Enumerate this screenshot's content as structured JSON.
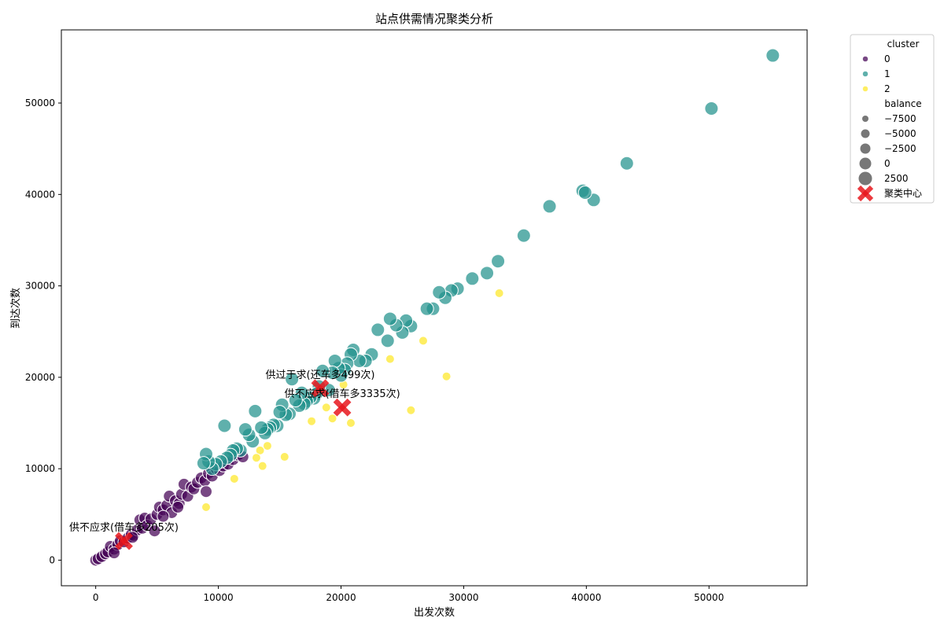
{
  "colors": {
    "c0": "#440154",
    "c1": "#21918c",
    "c2": "#fde725",
    "center": "#e8161c"
  },
  "chart_data": {
    "type": "scatter",
    "title": "站点供需情况聚类分析",
    "xlabel": "出发次数",
    "ylabel": "到达次数",
    "xlim": [
      -2800,
      58000
    ],
    "ylim": [
      -2800,
      58000
    ],
    "xticks": [
      0,
      10000,
      20000,
      30000,
      40000,
      50000
    ],
    "yticks": [
      0,
      10000,
      20000,
      30000,
      40000,
      50000
    ],
    "xtick_labels": [
      "0",
      "10000",
      "20000",
      "30000",
      "40000",
      "50000"
    ],
    "ytick_labels": [
      "0",
      "10000",
      "20000",
      "30000",
      "40000",
      "50000"
    ],
    "grid": false,
    "legend": {
      "placement": "outside-top-right",
      "hue_title": "cluster",
      "hue_items": [
        {
          "label": "0",
          "color": "#440154"
        },
        {
          "label": "1",
          "color": "#21918c"
        },
        {
          "label": "2",
          "color": "#fde725"
        }
      ],
      "size_title": "balance",
      "size_items": [
        {
          "label": "−7500",
          "value": -7500
        },
        {
          "label": "−5000",
          "value": -5000
        },
        {
          "label": "−2500",
          "value": -2500
        },
        {
          "label": "0",
          "value": 0
        },
        {
          "label": "2500",
          "value": 2500
        }
      ],
      "center_label": "聚类中心"
    },
    "clusters": [
      {
        "cluster": 0,
        "points": [
          [
            0,
            0
          ],
          [
            200,
            150
          ],
          [
            500,
            400
          ],
          [
            800,
            700
          ],
          [
            1000,
            900
          ],
          [
            1200,
            1500
          ],
          [
            1500,
            1200
          ],
          [
            1800,
            1700
          ],
          [
            2000,
            2100
          ],
          [
            2300,
            2000
          ],
          [
            2600,
            2400
          ],
          [
            2900,
            2800
          ],
          [
            3100,
            2700
          ],
          [
            3400,
            3300
          ],
          [
            3600,
            4400
          ],
          [
            3800,
            3500
          ],
          [
            4000,
            4600
          ],
          [
            4200,
            3800
          ],
          [
            4500,
            4500
          ],
          [
            4800,
            3200
          ],
          [
            5000,
            5000
          ],
          [
            5200,
            5800
          ],
          [
            5500,
            5500
          ],
          [
            5800,
            6000
          ],
          [
            6000,
            7000
          ],
          [
            6200,
            5200
          ],
          [
            6500,
            6500
          ],
          [
            6800,
            6200
          ],
          [
            7000,
            7200
          ],
          [
            7200,
            8300
          ],
          [
            7500,
            7000
          ],
          [
            7800,
            8000
          ],
          [
            8000,
            7800
          ],
          [
            8300,
            8500
          ],
          [
            8600,
            9000
          ],
          [
            8900,
            8700
          ],
          [
            9200,
            9500
          ],
          [
            9500,
            9200
          ],
          [
            9800,
            10000
          ],
          [
            10100,
            9800
          ],
          [
            10400,
            10300
          ],
          [
            10800,
            10500
          ],
          [
            11200,
            11000
          ],
          [
            11600,
            11500
          ],
          [
            12000,
            11300
          ],
          [
            1500,
            800
          ],
          [
            3000,
            2500
          ],
          [
            5500,
            4800
          ],
          [
            6700,
            5800
          ],
          [
            9000,
            7500
          ]
        ]
      },
      {
        "cluster": 1,
        "points": [
          [
            55200,
            55200
          ],
          [
            50200,
            49400
          ],
          [
            43300,
            43400
          ],
          [
            40600,
            39400
          ],
          [
            39700,
            40400
          ],
          [
            39900,
            40200
          ],
          [
            37000,
            38700
          ],
          [
            34900,
            35500
          ],
          [
            32800,
            32700
          ],
          [
            31900,
            31400
          ],
          [
            30700,
            30800
          ],
          [
            29500,
            29700
          ],
          [
            29000,
            29500
          ],
          [
            28500,
            28700
          ],
          [
            28000,
            29300
          ],
          [
            27500,
            27500
          ],
          [
            27000,
            27500
          ],
          [
            25700,
            25600
          ],
          [
            25300,
            26200
          ],
          [
            25000,
            24900
          ],
          [
            24500,
            25700
          ],
          [
            24000,
            26400
          ],
          [
            23800,
            24000
          ],
          [
            23000,
            25200
          ],
          [
            22500,
            22500
          ],
          [
            22000,
            21800
          ],
          [
            21500,
            21800
          ],
          [
            21000,
            23000
          ],
          [
            20800,
            22500
          ],
          [
            20500,
            21500
          ],
          [
            20300,
            20800
          ],
          [
            20000,
            20200
          ],
          [
            19800,
            21000
          ],
          [
            19500,
            21800
          ],
          [
            19300,
            20500
          ],
          [
            19000,
            18600
          ],
          [
            18500,
            20700
          ],
          [
            18200,
            19000
          ],
          [
            18000,
            18200
          ],
          [
            17800,
            17700
          ],
          [
            17500,
            17800
          ],
          [
            17200,
            17400
          ],
          [
            17000,
            17100
          ],
          [
            16800,
            18300
          ],
          [
            16600,
            16900
          ],
          [
            16300,
            17500
          ],
          [
            16000,
            19800
          ],
          [
            15800,
            16000
          ],
          [
            15500,
            15900
          ],
          [
            15200,
            17000
          ],
          [
            15000,
            16200
          ],
          [
            14800,
            14700
          ],
          [
            14500,
            14800
          ],
          [
            14200,
            14500
          ],
          [
            14000,
            14300
          ],
          [
            13800,
            13900
          ],
          [
            13500,
            14500
          ],
          [
            13000,
            16300
          ],
          [
            12800,
            13000
          ],
          [
            12500,
            13700
          ],
          [
            12200,
            14300
          ],
          [
            11800,
            12000
          ],
          [
            11500,
            12200
          ],
          [
            11200,
            12000
          ],
          [
            11000,
            11500
          ],
          [
            10700,
            11200
          ],
          [
            10500,
            14700
          ],
          [
            10200,
            10800
          ],
          [
            9800,
            10500
          ],
          [
            9500,
            10000
          ],
          [
            9200,
            10800
          ],
          [
            9000,
            11600
          ],
          [
            8800,
            10600
          ]
        ]
      },
      {
        "cluster": 2,
        "points": [
          [
            32900,
            29200
          ],
          [
            28600,
            20100
          ],
          [
            26700,
            24000
          ],
          [
            25700,
            16400
          ],
          [
            24000,
            22000
          ],
          [
            20800,
            15000
          ],
          [
            20200,
            19200
          ],
          [
            19300,
            15500
          ],
          [
            18800,
            16700
          ],
          [
            17600,
            15200
          ],
          [
            15400,
            11300
          ],
          [
            14000,
            12500
          ],
          [
            13600,
            10300
          ],
          [
            13400,
            12000
          ],
          [
            13100,
            11200
          ],
          [
            11300,
            8900
          ],
          [
            9000,
            5800
          ]
        ]
      }
    ],
    "sizes_by_cluster": [
      7.5,
      8.5,
      5.5
    ],
    "centers": [
      {
        "x": 2300,
        "y": 2100
      },
      {
        "x": 18300,
        "y": 18800
      },
      {
        "x": 20100,
        "y": 16700
      }
    ],
    "annotations": [
      {
        "text": "供不应求(借车多205次)",
        "x": 2300,
        "y": 2100
      },
      {
        "text": "供过于求(还车多499次)",
        "x": 18300,
        "y": 18800
      },
      {
        "text": "供不应求(借车多3335次)",
        "x": 20100,
        "y": 16700
      }
    ]
  }
}
